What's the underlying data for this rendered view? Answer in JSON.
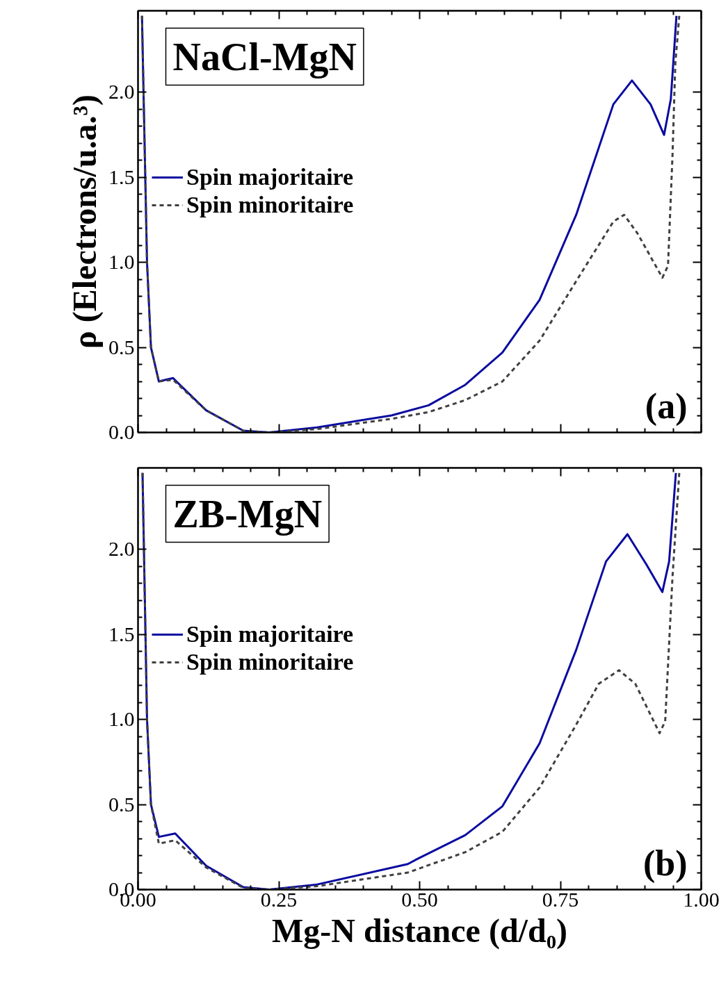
{
  "chart_data": [
    {
      "type": "line",
      "title": "NaCl-MgN",
      "ylabel": "ρ (Electrons/u.a.³)",
      "annotations": [
        "(a)"
      ],
      "xlim": [
        0,
        1
      ],
      "xticks": [
        0,
        0.25,
        0.5,
        0.75,
        1
      ],
      "ylim": [
        0,
        2.48
      ],
      "yticks": [
        {
          "value": 0,
          "label": "0.0"
        },
        {
          "value": 0.5,
          "label": "0.5"
        },
        {
          "value": 1,
          "label": "1.0"
        },
        {
          "value": 1.5,
          "label": "1.5"
        },
        {
          "value": 2,
          "label": "2.0"
        }
      ],
      "tick_labels": "y",
      "legend": "top left",
      "grid": false,
      "series": [
        {
          "name": "Spin majoritaire",
          "color": "#0a0aa0",
          "line_style": "solid",
          "x": [
            0.007,
            0.016,
            0.023,
            0.037,
            0.062,
            0.121,
            0.187,
            0.233,
            0.318,
            0.45,
            0.516,
            0.581,
            0.647,
            0.713,
            0.778,
            0.844,
            0.877,
            0.91,
            0.934,
            0.946,
            0.956
          ],
          "values": [
            2.45,
            1.0,
            0.5,
            0.3,
            0.32,
            0.13,
            0.01,
            0.0,
            0.03,
            0.1,
            0.16,
            0.28,
            0.47,
            0.78,
            1.28,
            1.93,
            2.07,
            1.93,
            1.75,
            1.96,
            2.45
          ]
        },
        {
          "name": "Spin minoritaire",
          "color": "#404040",
          "line_style": "dashed",
          "x": [
            0.007,
            0.016,
            0.023,
            0.037,
            0.062,
            0.121,
            0.187,
            0.233,
            0.318,
            0.45,
            0.516,
            0.581,
            0.647,
            0.713,
            0.778,
            0.844,
            0.863,
            0.887,
            0.931,
            0.941,
            0.949,
            0.954,
            0.961
          ],
          "values": [
            2.45,
            1.0,
            0.5,
            0.3,
            0.31,
            0.13,
            0.01,
            0.0,
            0.02,
            0.08,
            0.12,
            0.19,
            0.3,
            0.54,
            0.89,
            1.24,
            1.28,
            1.17,
            0.91,
            0.98,
            1.63,
            2.17,
            2.45
          ]
        }
      ]
    },
    {
      "type": "line",
      "title": "ZB-MgN",
      "xlabel": "Mg-N distance (d/d₀)",
      "annotations": [
        "(b)"
      ],
      "xlim": [
        0,
        1
      ],
      "xticks": [
        {
          "value": 0,
          "label": "0.00"
        },
        {
          "value": 0.25,
          "label": "0.25"
        },
        {
          "value": 0.5,
          "label": "0.50"
        },
        {
          "value": 0.75,
          "label": "0.75"
        },
        {
          "value": 1,
          "label": "1.00"
        }
      ],
      "ylim": [
        0,
        2.48
      ],
      "yticks": [
        {
          "value": 0,
          "label": "0.0"
        },
        {
          "value": 0.5,
          "label": "0.5"
        },
        {
          "value": 1,
          "label": "1.0"
        },
        {
          "value": 1.5,
          "label": "1.5"
        },
        {
          "value": 2,
          "label": "2.0"
        }
      ],
      "legend": "top left",
      "grid": false,
      "series": [
        {
          "name": "Spin majoritaire",
          "color": "#0a0aa0",
          "line_style": "solid",
          "x": [
            0.008,
            0.016,
            0.023,
            0.037,
            0.066,
            0.121,
            0.187,
            0.233,
            0.318,
            0.479,
            0.496,
            0.581,
            0.647,
            0.713,
            0.778,
            0.831,
            0.869,
            0.903,
            0.931,
            0.943,
            0.955
          ],
          "values": [
            2.45,
            1.0,
            0.5,
            0.31,
            0.33,
            0.14,
            0.014,
            0.0,
            0.03,
            0.15,
            0.18,
            0.32,
            0.49,
            0.86,
            1.41,
            1.93,
            2.09,
            1.91,
            1.75,
            1.93,
            2.45
          ]
        },
        {
          "name": "Spin minoritaire",
          "color": "#404040",
          "line_style": "dashed",
          "x": [
            0.008,
            0.016,
            0.023,
            0.037,
            0.066,
            0.121,
            0.187,
            0.233,
            0.318,
            0.479,
            0.581,
            0.647,
            0.713,
            0.778,
            0.818,
            0.854,
            0.883,
            0.926,
            0.936,
            0.949,
            0.961
          ],
          "values": [
            2.45,
            1.0,
            0.5,
            0.27,
            0.29,
            0.13,
            0.01,
            0.0,
            0.02,
            0.1,
            0.22,
            0.34,
            0.6,
            0.97,
            1.21,
            1.29,
            1.21,
            0.92,
            0.99,
            1.84,
            2.45
          ]
        }
      ]
    }
  ]
}
